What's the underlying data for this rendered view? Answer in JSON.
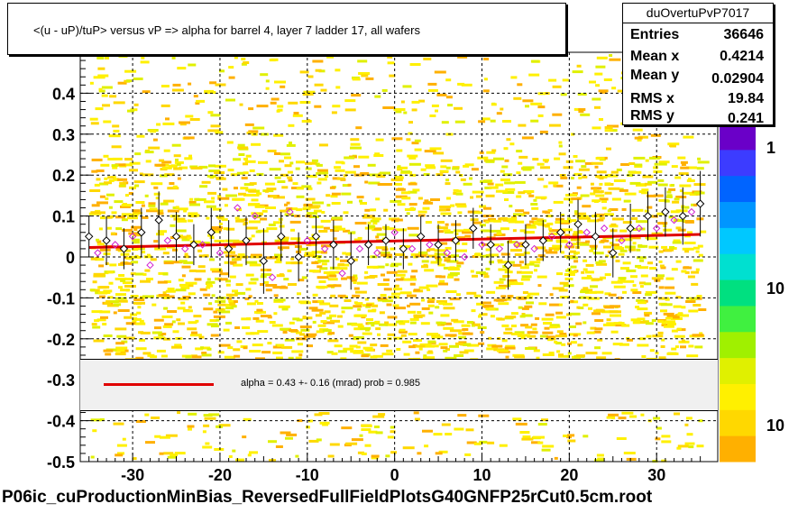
{
  "title": "<(u - uP)/tuP>  versus   vP => alpha for barrel 4, layer 7 ladder 17, all wafers",
  "stats": {
    "name": "duOvertuPvP7017",
    "rows": [
      {
        "label": "Entries",
        "value": "36646"
      },
      {
        "label": "Mean x",
        "value": "0.4214"
      },
      {
        "label": "Mean y",
        "value": "0.02904"
      },
      {
        "label": "RMS x",
        "value": "19.84"
      },
      {
        "label": "RMS y",
        "value": "0.241"
      }
    ]
  },
  "legend": {
    "text": "alpha =    0.43 +-  0.16 (mrad) prob = 0.985",
    "color": "#e00000"
  },
  "footer": "P06ic_cuProductionMinBias_ReversedFullFieldPlotsG40GNFP25rCut0.5cm.root",
  "palette": {
    "colors": [
      "#6a00c8",
      "#3c3cff",
      "#0064ff",
      "#0096ff",
      "#00c8ff",
      "#00e0d0",
      "#00e080",
      "#40f040",
      "#a0f000",
      "#e0f000",
      "#fff000",
      "#ffd800",
      "#ffb000"
    ],
    "tick_labels": [
      "1",
      "10",
      "10"
    ]
  },
  "chart_data": {
    "type": "scatter",
    "xlim": [
      -36,
      37
    ],
    "ylim": [
      -0.5,
      0.5
    ],
    "x_ticks": [
      -30,
      -20,
      -10,
      0,
      10,
      20,
      30
    ],
    "y_ticks": [
      -0.5,
      -0.4,
      -0.3,
      -0.2,
      -0.1,
      0,
      0.1,
      0.2,
      0.3,
      0.4
    ],
    "x_tick_labels": [
      "-30",
      "-20",
      "-10",
      "0",
      "10",
      "20",
      "30"
    ],
    "y_tick_labels": [
      "-0.5",
      "-0.4",
      "-0.3",
      "-0.2",
      "-0.1",
      "0",
      "0.1",
      "0.2",
      "0.3",
      "0.4"
    ],
    "grid": true,
    "fit_line": {
      "x": [
        -35,
        35
      ],
      "y": [
        0.023,
        0.055
      ],
      "color": "#e00000"
    },
    "profile_black": {
      "x": [
        -35,
        -33,
        -31,
        -29,
        -27,
        -25,
        -23,
        -21,
        -19,
        -17,
        -15,
        -13,
        -11,
        -9,
        -7,
        -5,
        -3,
        -1,
        1,
        3,
        5,
        7,
        9,
        11,
        13,
        15,
        17,
        19,
        21,
        23,
        25,
        27,
        29,
        31,
        33,
        35
      ],
      "y": [
        0.05,
        0.04,
        0.02,
        0.06,
        0.09,
        0.05,
        0.03,
        0.06,
        0.02,
        0.04,
        -0.01,
        0.05,
        0.0,
        0.05,
        0.03,
        -0.01,
        0.03,
        0.04,
        0.02,
        0.05,
        0.03,
        0.04,
        0.07,
        0.03,
        -0.02,
        0.03,
        0.04,
        0.06,
        0.08,
        0.05,
        0.01,
        0.07,
        0.1,
        0.11,
        0.1,
        0.13
      ],
      "err": [
        0.05,
        0.06,
        0.05,
        0.06,
        0.07,
        0.06,
        0.05,
        0.06,
        0.07,
        0.06,
        0.08,
        0.06,
        0.06,
        0.05,
        0.06,
        0.07,
        0.05,
        0.04,
        0.05,
        0.05,
        0.05,
        0.05,
        0.05,
        0.05,
        0.06,
        0.05,
        0.05,
        0.05,
        0.06,
        0.06,
        0.06,
        0.06,
        0.06,
        0.06,
        0.07,
        0.08
      ]
    },
    "profile_magenta": {
      "x": [
        -34,
        -32,
        -30,
        -28,
        -26,
        -24,
        -22,
        -20,
        -18,
        -16,
        -14,
        -12,
        -10,
        -8,
        -6,
        -4,
        -2,
        0,
        2,
        4,
        6,
        8,
        10,
        12,
        14,
        16,
        18,
        20,
        22,
        24,
        26,
        28,
        30,
        32,
        34
      ],
      "y": [
        0.01,
        0.03,
        0.05,
        -0.02,
        0.04,
        0.02,
        0.03,
        0.01,
        0.12,
        0.1,
        -0.05,
        0.11,
        0.04,
        0.02,
        -0.04,
        0.02,
        0.01,
        0.06,
        0.02,
        0.03,
        0.01,
        0.0,
        0.03,
        0.02,
        0.03,
        0.02,
        0.05,
        0.03,
        0.06,
        0.07,
        0.04,
        0.07,
        0.07,
        0.09,
        0.11
      ]
    }
  }
}
